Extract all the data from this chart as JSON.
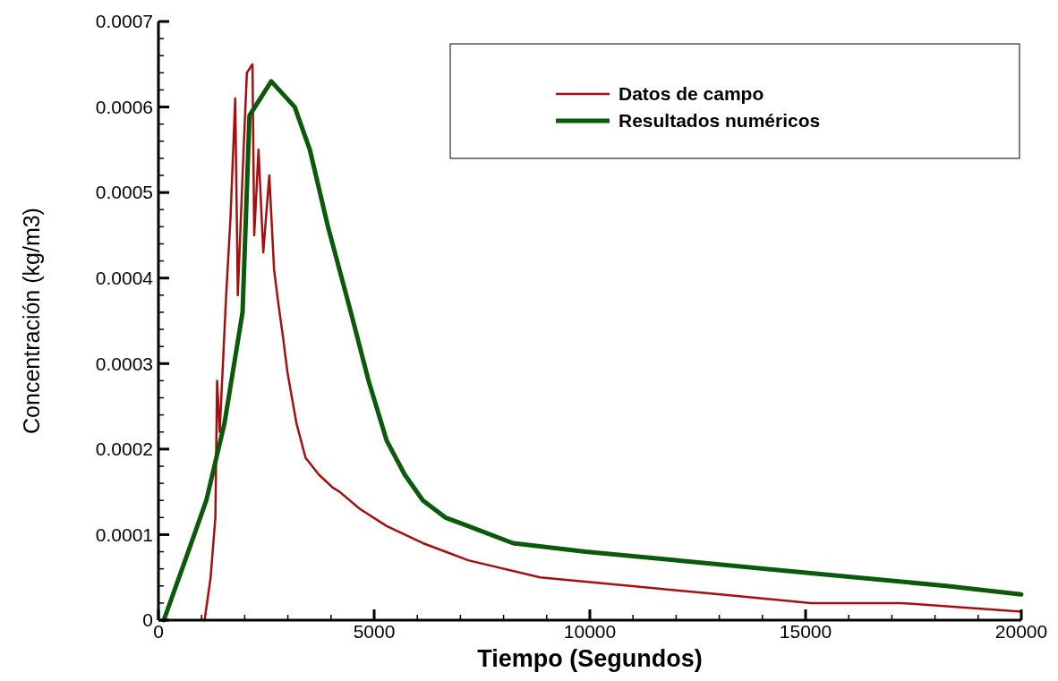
{
  "chart_data": {
    "type": "line",
    "xlabel": "Tiempo (Segundos)",
    "ylabel": "Concentración (kg/m3)",
    "xlim": [
      0,
      20000
    ],
    "ylim": [
      0,
      0.0007
    ],
    "xticks": [
      0,
      {
        "value": 1000,
        "label": null
      },
      {
        "value": 2000,
        "label": null
      },
      {
        "value": 3000,
        "label": null
      },
      {
        "value": 4000,
        "label": null
      },
      5000,
      {
        "value": 6000,
        "label": null
      },
      {
        "value": 7000,
        "label": null
      },
      {
        "value": 8000,
        "label": null
      },
      {
        "value": 9000,
        "label": null
      },
      10000,
      {
        "value": 11000,
        "label": null
      },
      {
        "value": 12000,
        "label": null
      },
      {
        "value": 13000,
        "label": null
      },
      {
        "value": 14000,
        "label": null
      },
      15000,
      {
        "value": 16000,
        "label": null
      },
      {
        "value": 17000,
        "label": null
      },
      {
        "value": 18000,
        "label": null
      },
      {
        "value": 19000,
        "label": null
      },
      20000
    ],
    "yticks": [
      0,
      {
        "value": 2e-05,
        "label": null
      },
      {
        "value": 4e-05,
        "label": null
      },
      {
        "value": 6e-05,
        "label": null
      },
      {
        "value": 8e-05,
        "label": null
      },
      0.0001,
      {
        "value": 0.00012,
        "label": null
      },
      {
        "value": 0.00014,
        "label": null
      },
      {
        "value": 0.00016,
        "label": null
      },
      {
        "value": 0.00018,
        "label": null
      },
      0.0002,
      {
        "value": 0.00022,
        "label": null
      },
      {
        "value": 0.00024,
        "label": null
      },
      {
        "value": 0.00026,
        "label": null
      },
      {
        "value": 0.00028,
        "label": null
      },
      0.0003,
      {
        "value": 0.00032,
        "label": null
      },
      {
        "value": 0.00034,
        "label": null
      },
      {
        "value": 0.00036,
        "label": null
      },
      {
        "value": 0.00038,
        "label": null
      },
      0.0004,
      {
        "value": 0.00042,
        "label": null
      },
      {
        "value": 0.00044,
        "label": null
      },
      {
        "value": 0.00046,
        "label": null
      },
      {
        "value": 0.00048,
        "label": null
      },
      0.0005,
      {
        "value": 0.00052,
        "label": null
      },
      {
        "value": 0.00054,
        "label": null
      },
      {
        "value": 0.00056,
        "label": null
      },
      {
        "value": 0.00058,
        "label": null
      },
      0.0006,
      {
        "value": 0.00062,
        "label": null
      },
      {
        "value": 0.00064,
        "label": null
      },
      {
        "value": 0.00066,
        "label": null
      },
      {
        "value": 0.00068,
        "label": null
      },
      0.0007
    ],
    "grid": false,
    "legend": "top right",
    "marker": "none",
    "line_style": "solid",
    "series": [
      {
        "name": "Datos de campo",
        "color": "#a50f0f",
        "x": [
          1070,
          1210,
          1320,
          1360,
          1420,
          1570,
          1670,
          1780,
          1840,
          1950,
          2050,
          2180,
          2220,
          2320,
          2430,
          2570,
          2680,
          2780,
          2890,
          2990,
          3200,
          3410,
          3720,
          4040,
          4200,
          4670,
          5290,
          6130,
          7180,
          8850,
          10940,
          13030,
          15130,
          17220,
          20000
        ],
        "values": [
          0,
          5e-05,
          0.00012,
          0.00028,
          0.00022,
          0.00038,
          0.00047,
          0.00061,
          0.00038,
          0.00052,
          0.00064,
          0.00065,
          0.00045,
          0.00055,
          0.00043,
          0.00052,
          0.00041,
          0.00037,
          0.00033,
          0.00029,
          0.00023,
          0.00019,
          0.00017,
          0.000155,
          0.00015,
          0.00013,
          0.00011,
          9e-05,
          7e-05,
          5e-05,
          4e-05,
          3e-05,
          2e-05,
          2e-05,
          1e-05
        ]
      },
      {
        "name": "Resultados numéricos",
        "color": "#0b5a0b",
        "x": [
          125,
          690,
          1110,
          1530,
          1950,
          2110,
          2615,
          3160,
          3510,
          3930,
          4460,
          4870,
          5290,
          5710,
          6130,
          6650,
          7180,
          8220,
          9900,
          11990,
          14080,
          16170,
          18260,
          20000
        ],
        "values": [
          0,
          8e-05,
          0.00014,
          0.00023,
          0.00036,
          0.00059,
          0.00063,
          0.0006,
          0.00055,
          0.00046,
          0.00036,
          0.00028,
          0.00021,
          0.00017,
          0.00014,
          0.00012,
          0.00011,
          9e-05,
          8e-05,
          7e-05,
          6e-05,
          5e-05,
          4e-05,
          3e-05
        ]
      }
    ]
  }
}
